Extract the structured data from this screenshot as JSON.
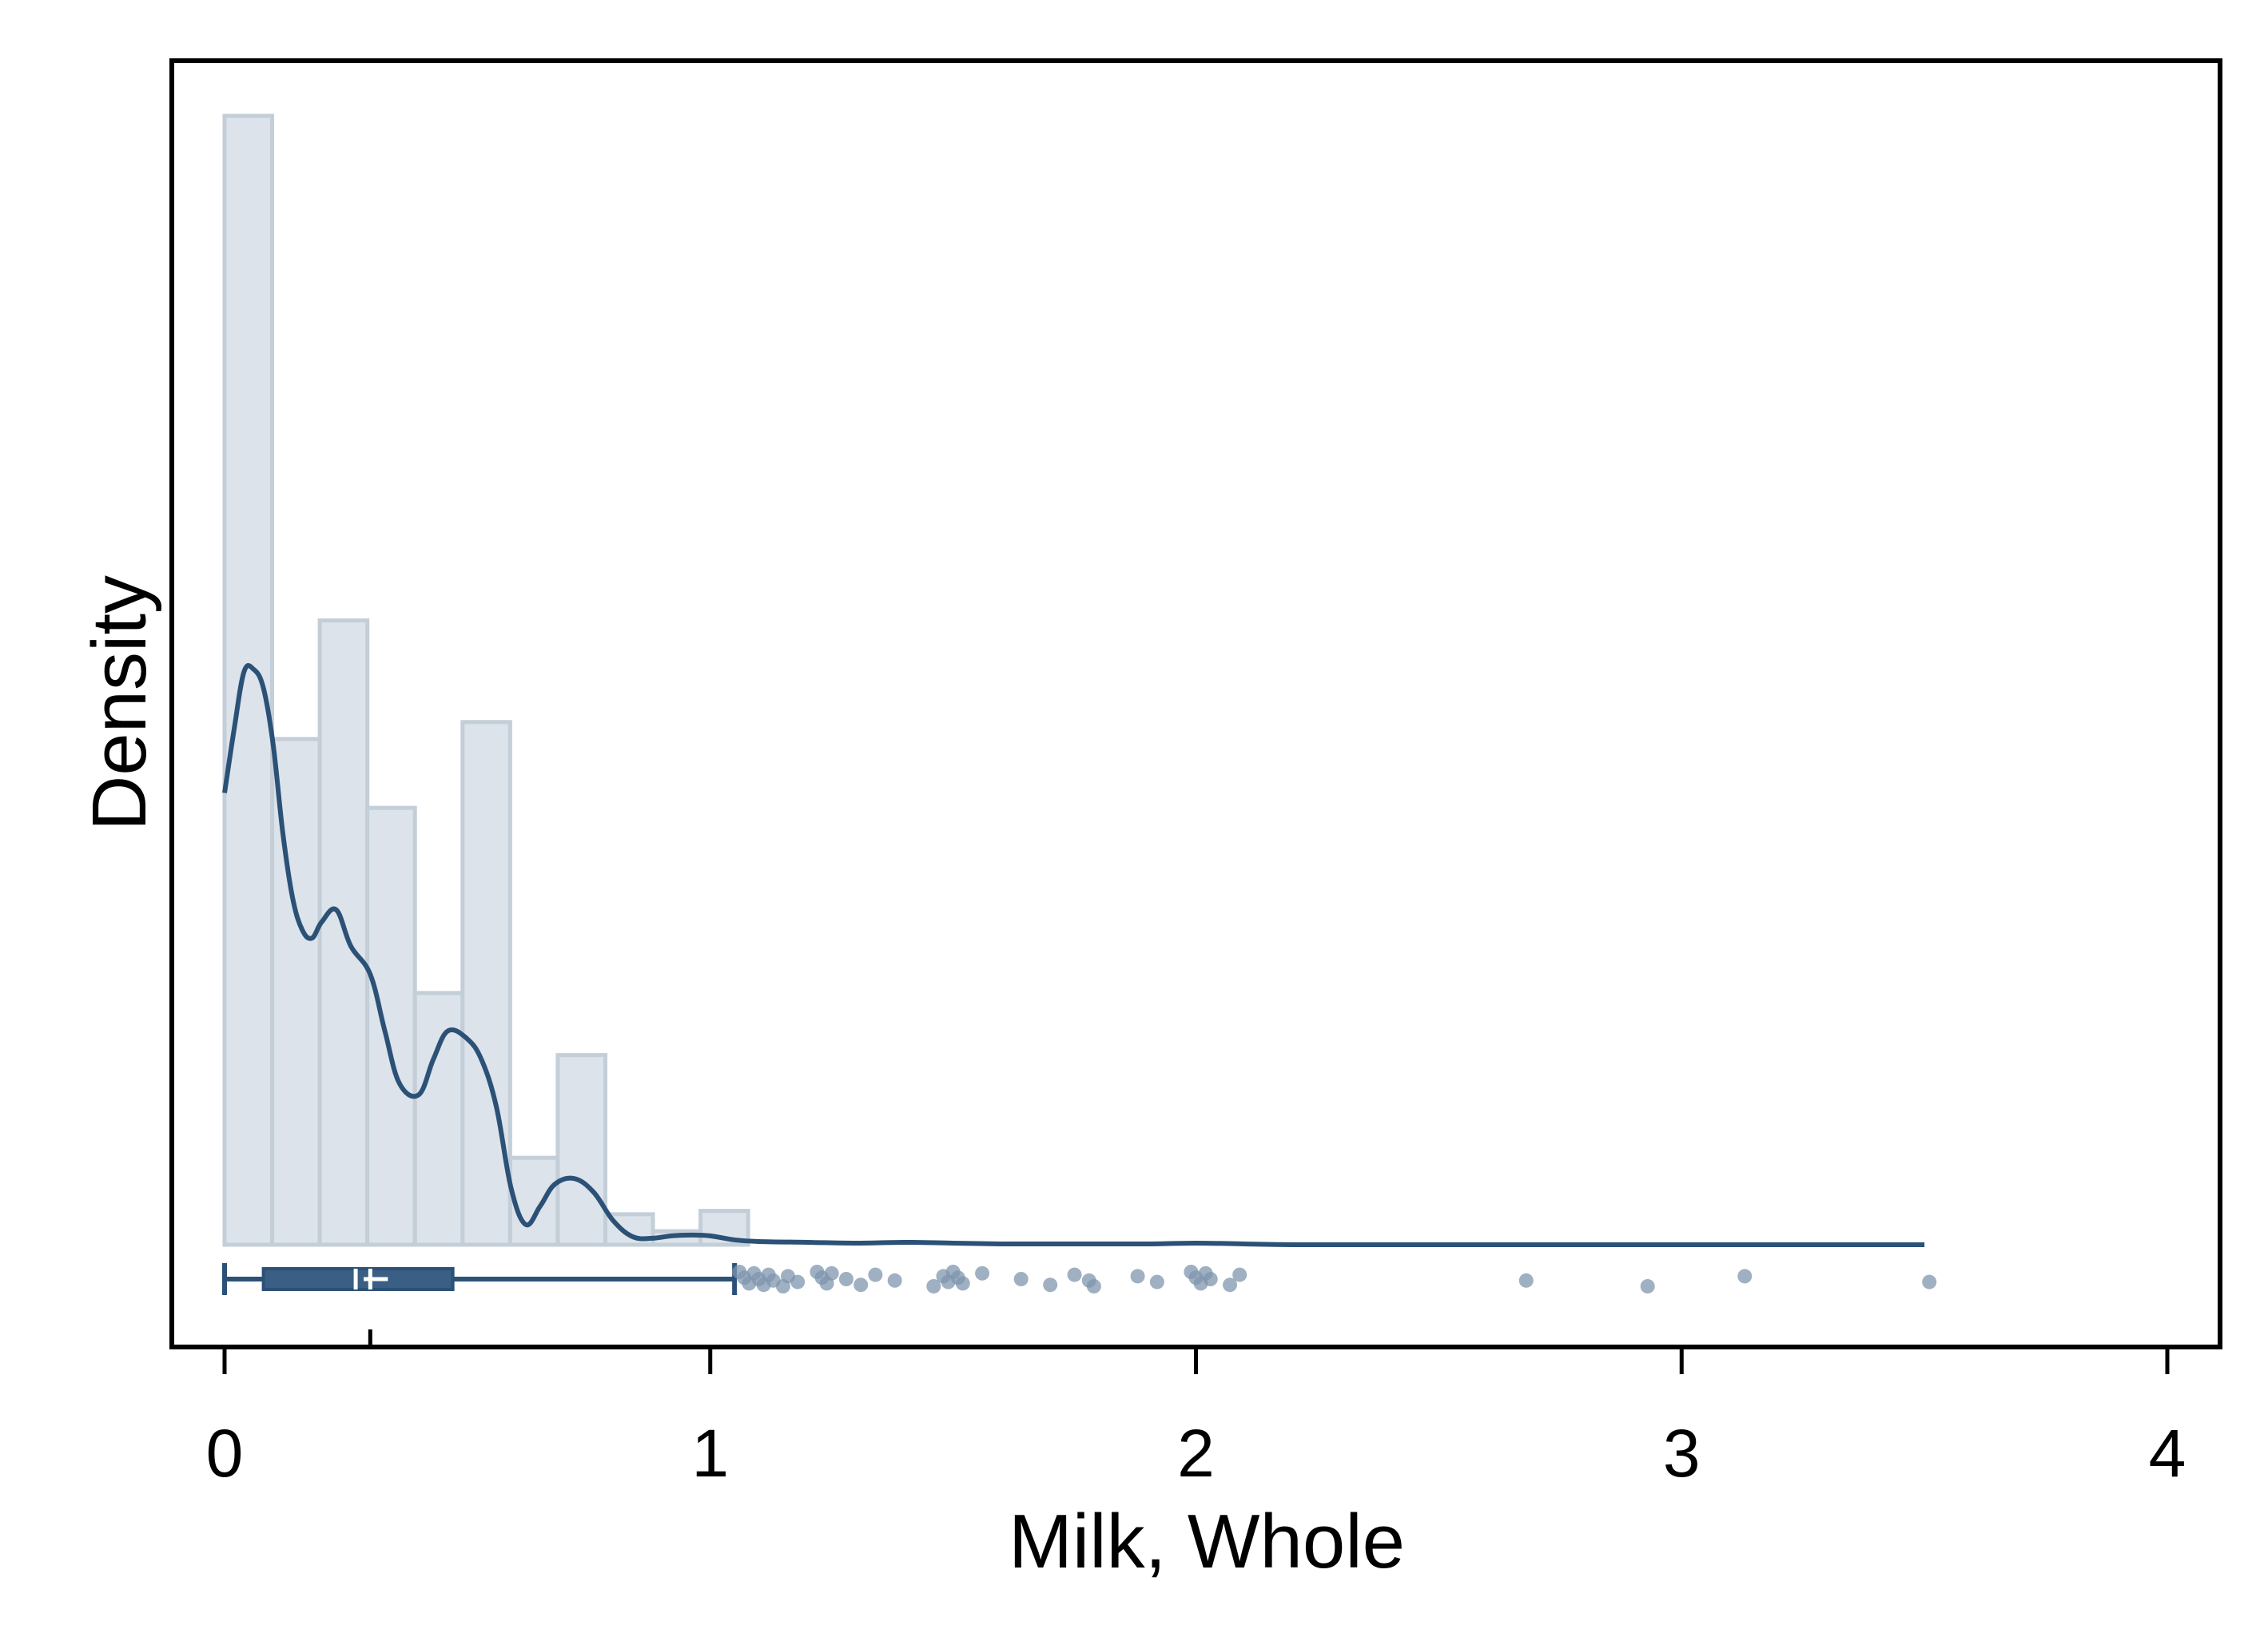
{
  "chart_data": {
    "type": "bar",
    "subtype": "histogram-with-kde-and-boxplot",
    "xlabel": "Milk, Whole",
    "ylabel": "Density",
    "xlim": [
      -0.1,
      4.1
    ],
    "xticks": [
      0,
      1,
      2,
      3,
      4
    ],
    "xtick_labels": [
      "0",
      "1",
      "2",
      "3",
      "4"
    ],
    "y_ticks_shown": false,
    "grid": false,
    "legend": "none",
    "colors": {
      "hist_fill": "#dce3ea",
      "hist_edge": "#c3ced8",
      "kde_line": "#2c5177",
      "box_fill": "#3b5f84",
      "box_line": "#2c5177",
      "outlier_dots": "#7f96ad",
      "frame": "#000000"
    },
    "histogram": {
      "bin_width": 0.098,
      "bin_starts": [
        0.0,
        0.098,
        0.196,
        0.294,
        0.392,
        0.49,
        0.588,
        0.686,
        0.784,
        0.882,
        0.98
      ],
      "relative_heights": [
        1.0,
        0.448,
        0.553,
        0.387,
        0.223,
        0.463,
        0.077,
        0.168,
        0.027,
        0.012,
        0.03
      ]
    },
    "kde": {
      "x": [
        0.0,
        0.02,
        0.04,
        0.06,
        0.08,
        0.1,
        0.12,
        0.14,
        0.16,
        0.18,
        0.2,
        0.23,
        0.26,
        0.3,
        0.33,
        0.36,
        0.4,
        0.43,
        0.46,
        0.5,
        0.53,
        0.56,
        0.59,
        0.62,
        0.65,
        0.68,
        0.72,
        0.76,
        0.8,
        0.84,
        0.88,
        0.92,
        0.96,
        1.0,
        1.05,
        1.1,
        1.2,
        1.3,
        1.4,
        1.5,
        1.6,
        1.7,
        1.8,
        1.9,
        2.0,
        2.1,
        2.2,
        2.4,
        2.6,
        2.8,
        3.0,
        3.2,
        3.5
      ],
      "relative_density": [
        0.56,
        0.64,
        0.71,
        0.713,
        0.69,
        0.62,
        0.51,
        0.43,
        0.39,
        0.38,
        0.4,
        0.415,
        0.37,
        0.335,
        0.265,
        0.2,
        0.186,
        0.23,
        0.265,
        0.255,
        0.228,
        0.17,
        0.07,
        0.025,
        0.048,
        0.075,
        0.082,
        0.065,
        0.03,
        0.01,
        0.008,
        0.011,
        0.012,
        0.011,
        0.006,
        0.004,
        0.003,
        0.002,
        0.003,
        0.002,
        0.001,
        0.001,
        0.001,
        0.001,
        0.002,
        0.001,
        0.0,
        0.0,
        0.0,
        0.0,
        0.0,
        0.0,
        0.0
      ]
    },
    "boxplot": {
      "whisker_low": 0.0,
      "q1": 0.08,
      "median": 0.27,
      "mean": 0.3,
      "q3": 0.47,
      "whisker_high": 1.05,
      "outliers": [
        1.06,
        1.07,
        1.08,
        1.09,
        1.1,
        1.11,
        1.12,
        1.13,
        1.15,
        1.16,
        1.18,
        1.22,
        1.23,
        1.24,
        1.25,
        1.28,
        1.31,
        1.34,
        1.38,
        1.46,
        1.48,
        1.49,
        1.5,
        1.51,
        1.52,
        1.56,
        1.64,
        1.7,
        1.75,
        1.78,
        1.79,
        1.88,
        1.92,
        1.99,
        2.0,
        2.01,
        2.02,
        2.03,
        2.07,
        2.09,
        2.68,
        2.93,
        3.13,
        3.51
      ]
    }
  }
}
